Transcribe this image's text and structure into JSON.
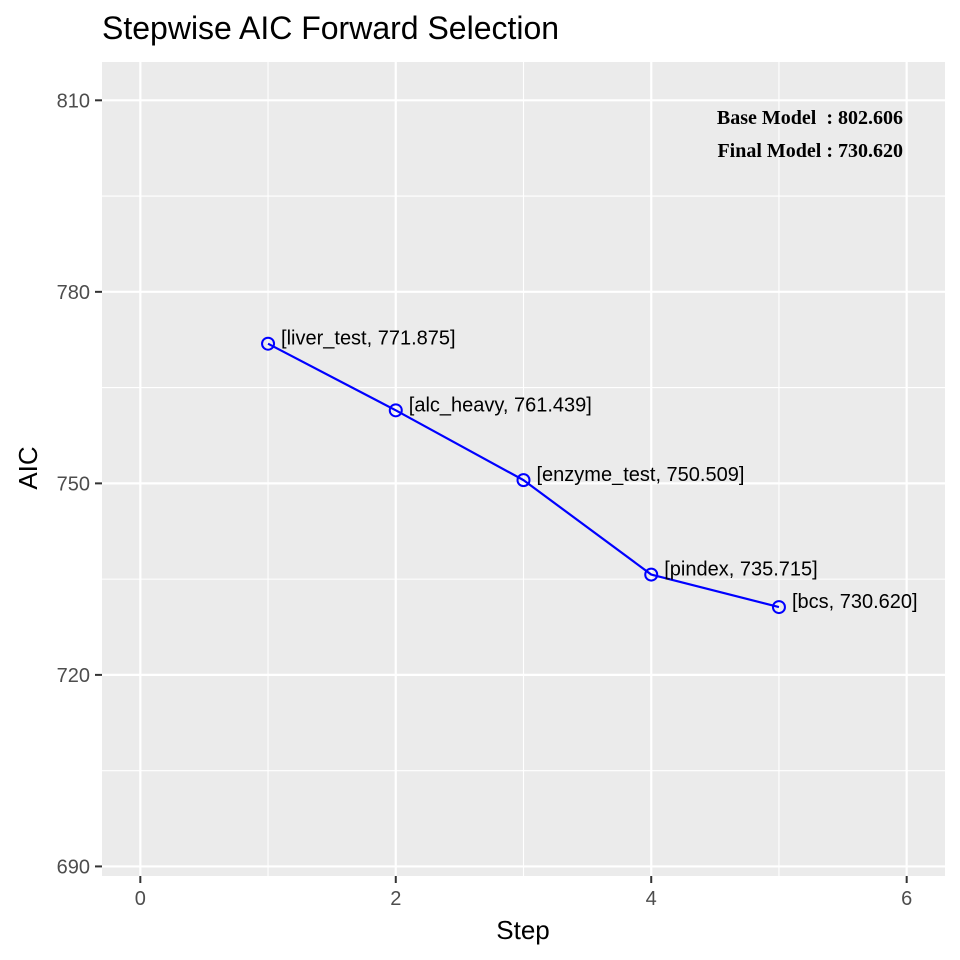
{
  "chart_data": {
    "type": "line",
    "title": "Stepwise AIC Forward Selection",
    "xlabel": "Step",
    "ylabel": "AIC",
    "xlim": [
      -0.3,
      6.3
    ],
    "ylim": [
      688.5,
      816
    ],
    "x_ticks": [
      0,
      2,
      4,
      6
    ],
    "y_ticks": [
      690,
      720,
      750,
      780,
      810
    ],
    "grid": true,
    "series": [
      {
        "x": [
          1,
          2,
          3,
          4,
          5
        ],
        "values": [
          771.875,
          761.439,
          750.509,
          735.715,
          730.62
        ],
        "point_labels": [
          "[liver_test, 771.875]",
          "[alc_heavy, 761.439]",
          "[enzyme_test, 750.509]",
          "[pindex, 735.715]",
          "[bcs, 730.620]"
        ],
        "color": "#0000ff"
      }
    ],
    "annotations": [
      "Base Model  : 802.606",
      "Final Model : 730.620"
    ],
    "annotation_position": "top-right",
    "panel_background": "#ebebeb",
    "grid_color": "#ffffff"
  }
}
